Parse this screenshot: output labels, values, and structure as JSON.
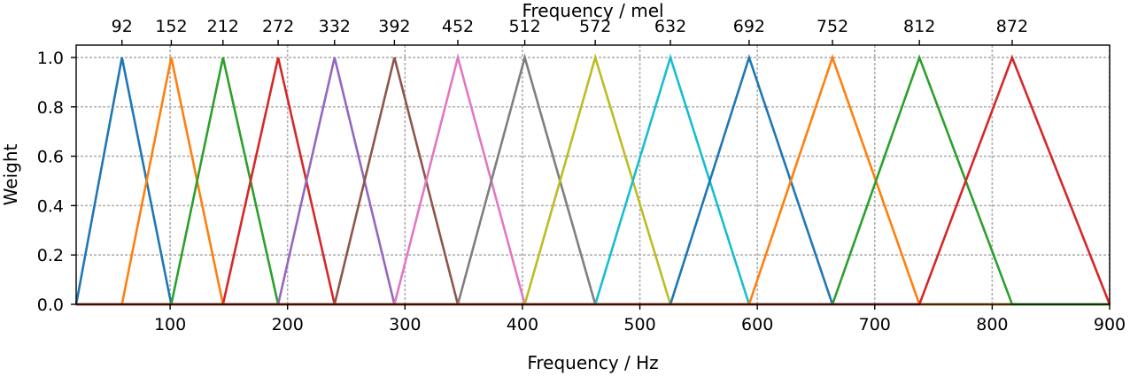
{
  "chart_data": {
    "type": "line",
    "xlabel": "Frequency / Hz",
    "ylabel": "Weight",
    "secondary_xlabel": "Frequency / mel",
    "xlim": [
      20,
      900
    ],
    "ylim": [
      0,
      1.0
    ],
    "grid": true,
    "x_ticks": [
      100,
      200,
      300,
      400,
      500,
      600,
      700,
      800,
      900
    ],
    "x_tick_labels": [
      "100",
      "200",
      "300",
      "400",
      "500",
      "600",
      "700",
      "800",
      "900"
    ],
    "y_ticks": [
      0,
      0.2,
      0.4,
      0.6,
      0.8,
      1.0
    ],
    "y_tick_labels": [
      "0.0",
      "0.2",
      "0.4",
      "0.6",
      "0.8",
      "1.0"
    ],
    "mel_ticks": [
      92,
      152,
      212,
      272,
      332,
      392,
      452,
      512,
      572,
      632,
      692,
      752,
      812,
      872
    ],
    "mel_tick_labels": [
      "92",
      "152",
      "212",
      "272",
      "332",
      "392",
      "452",
      "512",
      "572",
      "632",
      "692",
      "752",
      "812",
      "872"
    ],
    "mel_tick_hz": [
      59,
      101,
      145,
      192,
      240,
      291,
      345,
      402,
      462,
      526,
      593,
      664,
      738,
      817
    ],
    "series": [
      {
        "color": "#1f77b4",
        "x": [
          20,
          59,
          101,
          900
        ],
        "y": [
          0,
          1,
          0,
          0
        ]
      },
      {
        "color": "#ff7f0e",
        "x": [
          20,
          59,
          101,
          145,
          900
        ],
        "y": [
          0,
          0,
          1,
          0,
          0
        ]
      },
      {
        "color": "#2ca02c",
        "x": [
          20,
          101,
          145,
          192,
          900
        ],
        "y": [
          0,
          0,
          1,
          0,
          0
        ]
      },
      {
        "color": "#d62728",
        "x": [
          20,
          145,
          192,
          240,
          900
        ],
        "y": [
          0,
          0,
          1,
          0,
          0
        ]
      },
      {
        "color": "#9467bd",
        "x": [
          20,
          192,
          240,
          291,
          900
        ],
        "y": [
          0,
          0,
          1,
          0,
          0
        ]
      },
      {
        "color": "#8c564b",
        "x": [
          20,
          240,
          291,
          345,
          900
        ],
        "y": [
          0,
          0,
          1,
          0,
          0
        ]
      },
      {
        "color": "#e377c2",
        "x": [
          20,
          291,
          345,
          402,
          900
        ],
        "y": [
          0,
          0,
          1,
          0,
          0
        ]
      },
      {
        "color": "#7f7f7f",
        "x": [
          20,
          345,
          402,
          462,
          900
        ],
        "y": [
          0,
          0,
          1,
          0,
          0
        ]
      },
      {
        "color": "#bcbd22",
        "x": [
          20,
          402,
          462,
          526,
          900
        ],
        "y": [
          0,
          0,
          1,
          0,
          0
        ]
      },
      {
        "color": "#17becf",
        "x": [
          20,
          462,
          526,
          593,
          900
        ],
        "y": [
          0,
          0,
          1,
          0,
          0
        ]
      },
      {
        "color": "#1f77b4",
        "x": [
          20,
          526,
          593,
          664,
          900
        ],
        "y": [
          0,
          0,
          1,
          0,
          0
        ]
      },
      {
        "color": "#ff7f0e",
        "x": [
          20,
          593,
          664,
          738,
          900
        ],
        "y": [
          0,
          0,
          1,
          0,
          0
        ]
      },
      {
        "color": "#2ca02c",
        "x": [
          20,
          664,
          738,
          817,
          900
        ],
        "y": [
          0,
          0,
          1,
          0,
          0
        ]
      },
      {
        "color": "#d62728",
        "x": [
          20,
          738,
          817,
          900
        ],
        "y": [
          0,
          0,
          1,
          0
        ]
      }
    ]
  }
}
